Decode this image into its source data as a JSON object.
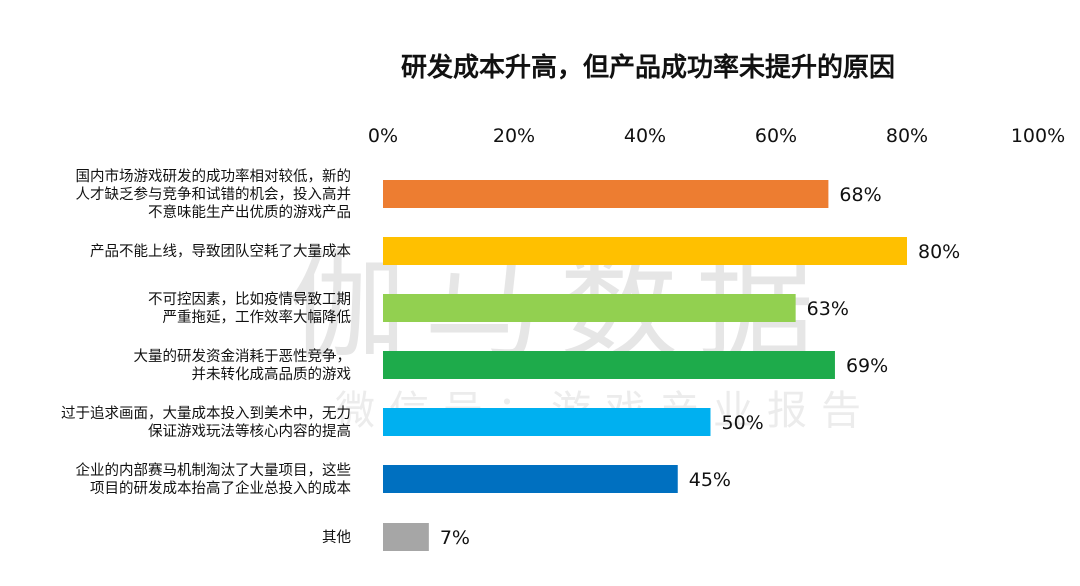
{
  "chart_data": {
    "type": "bar",
    "orientation": "horizontal",
    "title": "研发成本升高，但产品成功率未提升的原因",
    "xlim": [
      0,
      100
    ],
    "ticks": [
      "0%",
      "20%",
      "40%",
      "60%",
      "80%",
      "100%"
    ],
    "grid": false,
    "legend": "none",
    "categories": [
      [
        "国内市场游戏研发的成功率相对较低，新的",
        "人才缺乏参与竞争和试错的机会，投入高并",
        "不意味能生产出优质的游戏产品"
      ],
      [
        "产品不能上线，导致团队空耗了大量成本"
      ],
      [
        "不可控因素，比如疫情导致工期",
        "严重拖延，工作效率大幅降低"
      ],
      [
        "大量的研发资金消耗于恶性竞争，",
        "并未转化成高品质的游戏"
      ],
      [
        "过于追求画面，大量成本投入到美术中，无力",
        "保证游戏玩法等核心内容的提高"
      ],
      [
        "企业的内部赛马机制淘汰了大量项目，这些",
        "项目的研发成本抬高了企业总投入的成本"
      ],
      [
        "其他"
      ]
    ],
    "values": [
      68,
      80,
      63,
      69,
      50,
      45,
      7
    ],
    "labels": [
      "68%",
      "80%",
      "63%",
      "69%",
      "50%",
      "45%",
      "7%"
    ],
    "colors": [
      "#ED7D31",
      "#FFC000",
      "#92D050",
      "#1EAB4B",
      "#00B0F0",
      "#0070C0",
      "#A6A6A6"
    ]
  },
  "watermark": {
    "main": "伽马数据",
    "sub": "微信号：游戏产业报告"
  }
}
